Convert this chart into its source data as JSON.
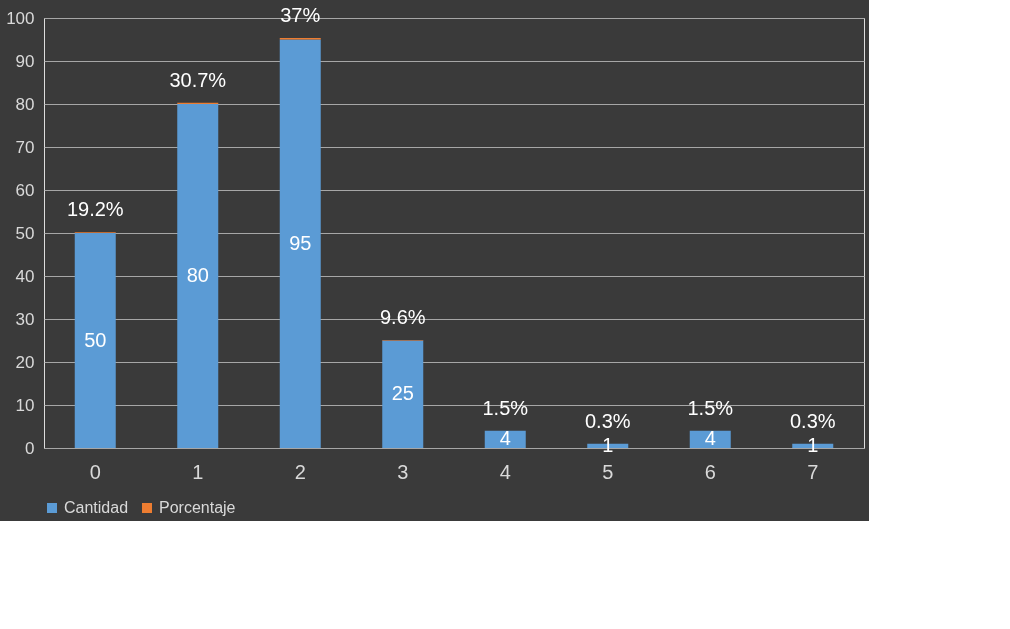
{
  "chart_data": {
    "type": "bar",
    "stacked": true,
    "categories": [
      "0",
      "1",
      "2",
      "3",
      "4",
      "5",
      "6",
      "7"
    ],
    "series": [
      {
        "name": "Cantidad",
        "color": "#5b9bd5",
        "values": [
          50,
          80,
          95,
          25,
          4,
          1,
          4,
          1
        ],
        "value_labels": [
          "50",
          "80",
          "95",
          "25",
          "4",
          "1",
          "4",
          "1"
        ]
      },
      {
        "name": "Porcentaje",
        "color": "#ed7d31",
        "values": [
          0.192,
          0.307,
          0.37,
          0.096,
          0.015,
          0.003,
          0.015,
          0.003
        ],
        "value_labels": [
          "19.2%",
          "30.7%",
          "37%",
          "9.6%",
          "1.5%",
          "0.3%",
          "1.5%",
          "0.3%"
        ]
      }
    ],
    "ylim": [
      0,
      100
    ],
    "yticks": [
      0,
      10,
      20,
      30,
      40,
      50,
      60,
      70,
      80,
      90,
      100
    ],
    "grid": "y",
    "legend": "bottom"
  }
}
